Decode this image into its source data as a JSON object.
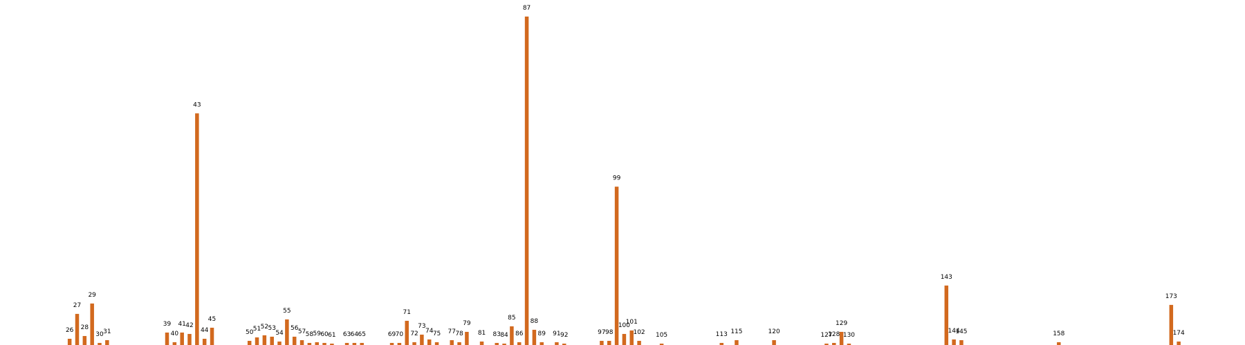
{
  "chart_data": {
    "type": "bar",
    "title": "",
    "xlabel": "",
    "ylabel": "",
    "grid": false,
    "axes_visible": false,
    "bar_color": "#d2691e",
    "label_color": "#000000",
    "x_range": [
      18,
      181
    ],
    "ylim": [
      0,
      475
    ],
    "x": [
      26,
      27,
      28,
      29,
      30,
      31,
      39,
      40,
      41,
      42,
      43,
      44,
      45,
      50,
      51,
      52,
      53,
      54,
      55,
      56,
      57,
      58,
      59,
      60,
      61,
      63,
      64,
      65,
      69,
      70,
      71,
      72,
      73,
      74,
      75,
      77,
      78,
      79,
      81,
      83,
      84,
      85,
      86,
      87,
      88,
      89,
      91,
      92,
      97,
      98,
      99,
      100,
      101,
      102,
      105,
      113,
      115,
      120,
      127,
      128,
      129,
      130,
      143,
      144,
      145,
      158,
      173,
      174
    ],
    "values": [
      9,
      45,
      13,
      60,
      3,
      7,
      18,
      4,
      18,
      16,
      335,
      9,
      25,
      6,
      11,
      14,
      12,
      5,
      37,
      12,
      7,
      3,
      4,
      3,
      2,
      3,
      3,
      3,
      3,
      3,
      35,
      4,
      15,
      8,
      4,
      7,
      4,
      19,
      5,
      3,
      2,
      27,
      4,
      475,
      22,
      4,
      4,
      2,
      6,
      6,
      229,
      16,
      21,
      6,
      2,
      3,
      7,
      7,
      2,
      3,
      19,
      2,
      86,
      8,
      7,
      4,
      58,
      5
    ]
  }
}
